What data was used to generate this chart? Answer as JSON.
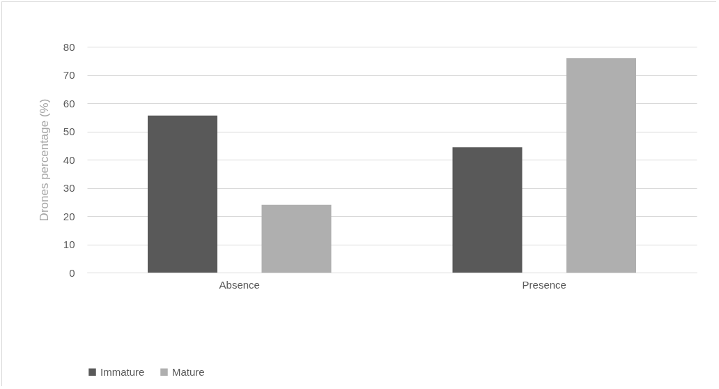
{
  "chart_data": {
    "type": "bar",
    "ylabel": "Drones percentage (%)",
    "categories": [
      "Absence",
      "Presence"
    ],
    "series": [
      {
        "name": "Immature",
        "color": "#595959",
        "values": [
          55.6,
          44.4
        ]
      },
      {
        "name": "Mature",
        "color": "#afafaf",
        "values": [
          24,
          76
        ]
      }
    ],
    "ylim": [
      0,
      80
    ],
    "yticks": [
      0,
      10,
      20,
      30,
      40,
      50,
      60,
      70,
      80
    ],
    "grid": "y",
    "legend": "bottom"
  }
}
